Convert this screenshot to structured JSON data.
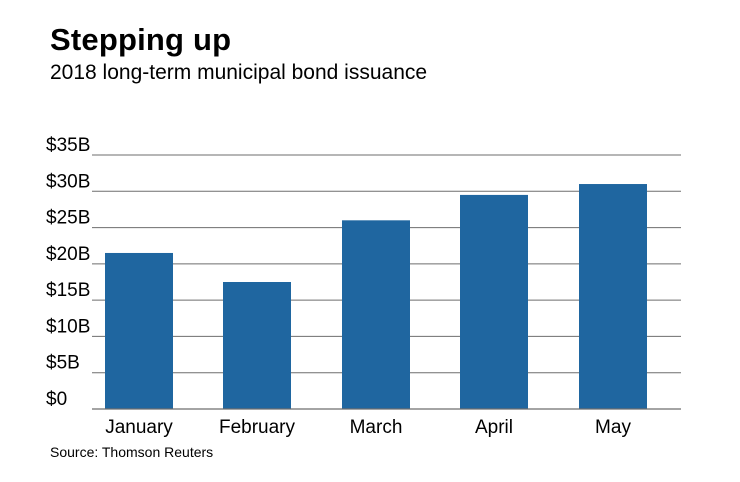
{
  "title": "Stepping up",
  "subtitle": "2018 long-term municipal bond issuance",
  "source": "Source: Thomson Reuters",
  "colors": {
    "bar": "#1f66a0",
    "grid": "#6e6e6e",
    "baseline": "#6e6e6e"
  },
  "chart_data": {
    "type": "bar",
    "title": "Stepping up",
    "subtitle": "2018 long-term municipal bond issuance",
    "xlabel": "",
    "ylabel": "",
    "categories": [
      "January",
      "February",
      "March",
      "April",
      "May"
    ],
    "values": [
      21.5,
      17.5,
      26,
      29.5,
      31
    ],
    "unit": "billion USD",
    "ylim": [
      0,
      35
    ],
    "yticks": [
      0,
      5,
      10,
      15,
      20,
      25,
      30,
      35
    ],
    "ytick_labels": [
      "$0",
      "$5B",
      "$10B",
      "$15B",
      "$20B",
      "$25B",
      "$30B",
      "$35B"
    ],
    "grid": true,
    "legend": "none"
  }
}
